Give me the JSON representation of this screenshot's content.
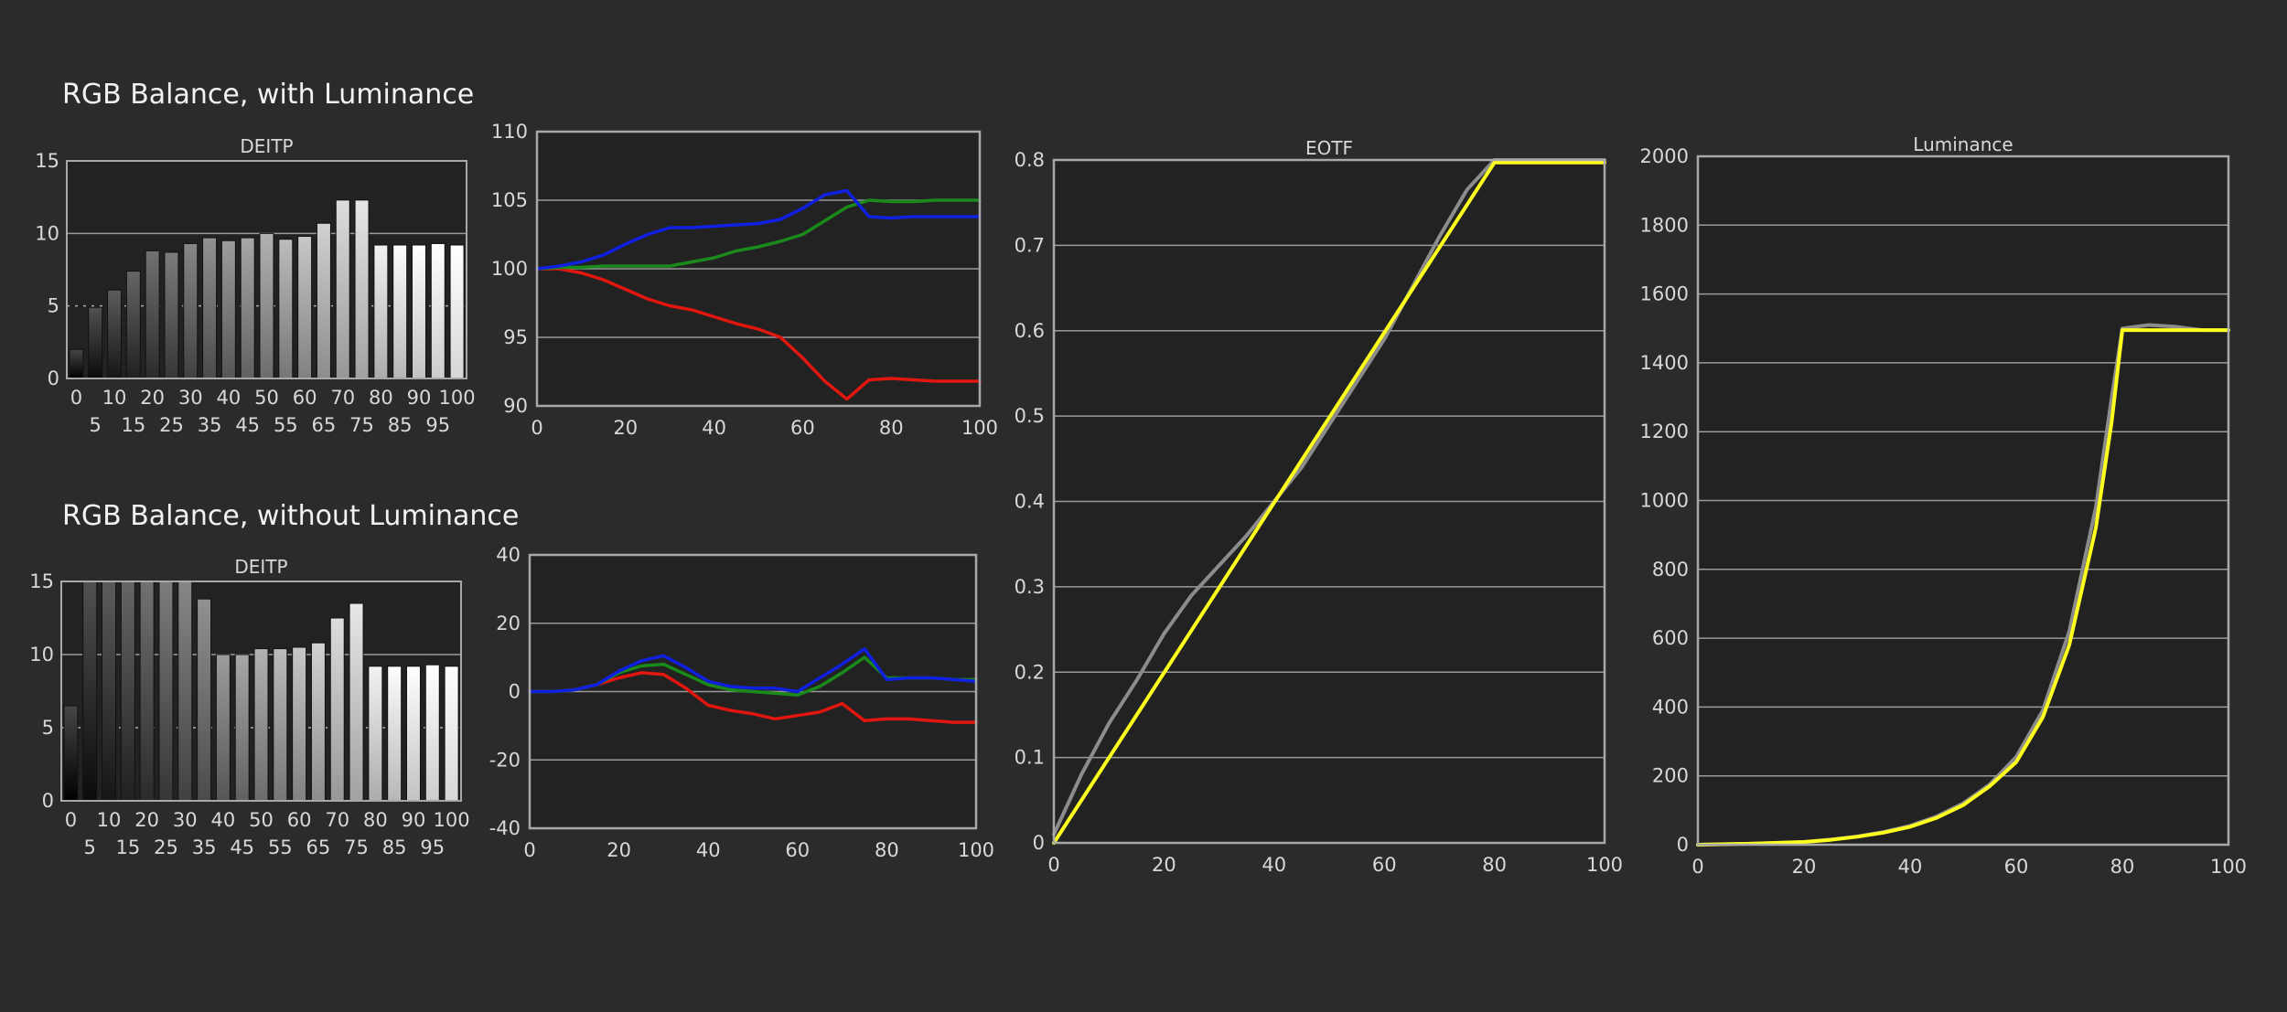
{
  "headings": {
    "with_luminance": "RGB Balance, with Luminance",
    "without_luminance": "RGB Balance, without Luminance"
  },
  "colors": {
    "background": "#2b2b2b",
    "plot_background": "#222222",
    "grid": "#8a8a8a",
    "red": "#e0160f",
    "green": "#1a8a1a",
    "blue": "#1020e0",
    "yellow": "#ffff1e",
    "gray": "#8c8c8c"
  },
  "chart_data": [
    {
      "id": "deitp-with",
      "type": "bar",
      "title": "DEITP",
      "categories": [
        "0",
        "5",
        "10",
        "15",
        "20",
        "25",
        "30",
        "35",
        "40",
        "45",
        "50",
        "55",
        "60",
        "65",
        "70",
        "75",
        "80",
        "85",
        "90",
        "95",
        "100"
      ],
      "values": [
        2.0,
        4.9,
        6.1,
        7.4,
        8.8,
        8.7,
        9.3,
        9.7,
        9.5,
        9.7,
        10.0,
        9.6,
        9.8,
        10.7,
        12.3,
        12.3,
        9.2,
        9.2,
        9.2,
        9.3,
        9.2
      ],
      "ylim": [
        0,
        15
      ],
      "yticks": [
        0,
        5,
        10,
        15
      ],
      "xtick_row1": [
        "0",
        "10",
        "20",
        "30",
        "40",
        "50",
        "60",
        "70",
        "80",
        "90",
        "100"
      ],
      "xtick_row2": [
        "5",
        "15",
        "25",
        "35",
        "45",
        "55",
        "65",
        "75",
        "85",
        "95"
      ]
    },
    {
      "id": "rgb-with",
      "type": "line",
      "title": "",
      "x": [
        0,
        5,
        10,
        15,
        20,
        25,
        30,
        35,
        40,
        45,
        50,
        55,
        60,
        65,
        70,
        75,
        80,
        85,
        90,
        95,
        100
      ],
      "xlim": [
        0,
        100
      ],
      "ylim": [
        90,
        110
      ],
      "xticks": [
        0,
        20,
        40,
        60,
        80,
        100
      ],
      "yticks": [
        90,
        95,
        100,
        105,
        110
      ],
      "series": [
        {
          "color": "red",
          "values": [
            100,
            100,
            99.7,
            99.2,
            98.5,
            97.8,
            97.3,
            97,
            96.5,
            96,
            95.6,
            95,
            93.5,
            91.8,
            90.5,
            91.9,
            92,
            91.9,
            91.8,
            91.8,
            91.8
          ]
        },
        {
          "color": "green",
          "values": [
            100,
            100.1,
            100.1,
            100.2,
            100.2,
            100.2,
            100.2,
            100.5,
            100.8,
            101.3,
            101.6,
            102,
            102.5,
            103.5,
            104.5,
            105,
            104.9,
            104.9,
            105,
            105,
            105
          ]
        },
        {
          "color": "blue",
          "values": [
            100,
            100.2,
            100.5,
            101,
            101.8,
            102.5,
            103,
            103,
            103.1,
            103.2,
            103.3,
            103.6,
            104.4,
            105.4,
            105.7,
            103.8,
            103.7,
            103.8,
            103.8,
            103.8,
            103.8
          ]
        }
      ]
    },
    {
      "id": "deitp-without",
      "type": "bar",
      "title": "DEITP",
      "categories": [
        "0",
        "5",
        "10",
        "15",
        "20",
        "25",
        "30",
        "35",
        "40",
        "45",
        "50",
        "55",
        "60",
        "65",
        "70",
        "75",
        "80",
        "85",
        "90",
        "95",
        "100"
      ],
      "values": [
        6.5,
        15,
        15,
        15,
        15,
        15,
        15,
        13.8,
        10,
        10,
        10.4,
        10.4,
        10.5,
        10.8,
        12.5,
        13.5,
        9.2,
        9.2,
        9.2,
        9.3,
        9.2
      ],
      "ylim": [
        0,
        15
      ],
      "yticks": [
        0,
        5,
        10,
        15
      ],
      "xtick_row1": [
        "0",
        "10",
        "20",
        "30",
        "40",
        "50",
        "60",
        "70",
        "80",
        "90",
        "100"
      ],
      "xtick_row2": [
        "5",
        "15",
        "25",
        "35",
        "45",
        "55",
        "65",
        "75",
        "85",
        "95"
      ]
    },
    {
      "id": "rgb-without",
      "type": "line",
      "title": "",
      "x": [
        0,
        5,
        10,
        15,
        20,
        25,
        30,
        35,
        40,
        45,
        50,
        55,
        60,
        65,
        70,
        75,
        80,
        85,
        90,
        95,
        100
      ],
      "xlim": [
        0,
        100
      ],
      "ylim": [
        -40,
        40
      ],
      "xticks": [
        0,
        20,
        40,
        60,
        80,
        100
      ],
      "yticks": [
        -40,
        -20,
        0,
        20,
        40
      ],
      "series": [
        {
          "color": "red",
          "values": [
            0,
            0,
            0.5,
            2,
            4,
            5.5,
            5,
            1,
            -4,
            -5.5,
            -6.5,
            -8,
            -7,
            -6,
            -3.5,
            -8.5,
            -8,
            -8,
            -8.5,
            -9,
            -9
          ]
        },
        {
          "color": "green",
          "values": [
            0,
            0,
            0.5,
            2,
            5.5,
            7.5,
            8,
            5,
            2,
            0.5,
            0,
            -0.5,
            -1,
            1.5,
            5.5,
            10,
            4,
            4,
            4,
            3.5,
            3.5
          ]
        },
        {
          "color": "blue",
          "values": [
            0,
            0,
            0.5,
            2,
            6,
            9,
            10.5,
            7,
            3,
            1.5,
            1,
            1,
            0,
            4,
            8,
            12.5,
            3.5,
            4,
            4,
            3.5,
            3
          ]
        }
      ]
    },
    {
      "id": "eotf",
      "type": "line",
      "title": "EOTF",
      "xlim": [
        0,
        100
      ],
      "ylim": [
        0,
        0.8
      ],
      "xticks": [
        0,
        20,
        40,
        60,
        80,
        100
      ],
      "yticks": [
        0,
        0.1,
        0.2,
        0.3,
        0.4,
        0.5,
        0.6,
        0.7,
        0.8
      ],
      "ytick_labels": [
        "0",
        "0.1",
        "0.2",
        "0.3",
        "0.4",
        "0.5",
        "0.6",
        "0.7",
        "0.8"
      ],
      "series": [
        {
          "color": "gray",
          "x": [
            0,
            5,
            10,
            15,
            20,
            25,
            30,
            35,
            40,
            45,
            50,
            55,
            60,
            65,
            70,
            75,
            80,
            85,
            90,
            95,
            100
          ],
          "values": [
            0.01,
            0.08,
            0.14,
            0.19,
            0.245,
            0.29,
            0.325,
            0.36,
            0.4,
            0.44,
            0.49,
            0.54,
            0.59,
            0.65,
            0.71,
            0.765,
            0.8,
            0.8,
            0.8,
            0.8,
            0.8
          ]
        },
        {
          "color": "yellow",
          "x": [
            0,
            80,
            100
          ],
          "values": [
            0.0,
            0.797,
            0.797
          ]
        }
      ]
    },
    {
      "id": "luminance",
      "type": "line",
      "title": "Luminance",
      "xlim": [
        0,
        100
      ],
      "ylim": [
        0,
        2000
      ],
      "xticks": [
        0,
        20,
        40,
        60,
        80,
        100
      ],
      "yticks": [
        0,
        200,
        400,
        600,
        800,
        1000,
        1200,
        1400,
        1600,
        1800,
        2000
      ],
      "series": [
        {
          "color": "gray",
          "x": [
            0,
            10,
            20,
            25,
            30,
            35,
            40,
            45,
            50,
            55,
            60,
            65,
            70,
            75,
            78,
            80,
            85,
            90,
            95,
            100
          ],
          "values": [
            0,
            3,
            8,
            15,
            24,
            37,
            55,
            82,
            120,
            175,
            255,
            390,
            620,
            980,
            1300,
            1500,
            1510,
            1505,
            1495,
            1495
          ]
        },
        {
          "color": "yellow",
          "x": [
            0,
            10,
            20,
            25,
            30,
            35,
            40,
            45,
            50,
            55,
            60,
            65,
            70,
            75,
            78,
            80,
            85,
            90,
            95,
            100
          ],
          "values": [
            0,
            3,
            8,
            14,
            23,
            35,
            52,
            78,
            115,
            170,
            240,
            370,
            580,
            920,
            1230,
            1495,
            1495,
            1495,
            1495,
            1495
          ]
        }
      ]
    }
  ]
}
